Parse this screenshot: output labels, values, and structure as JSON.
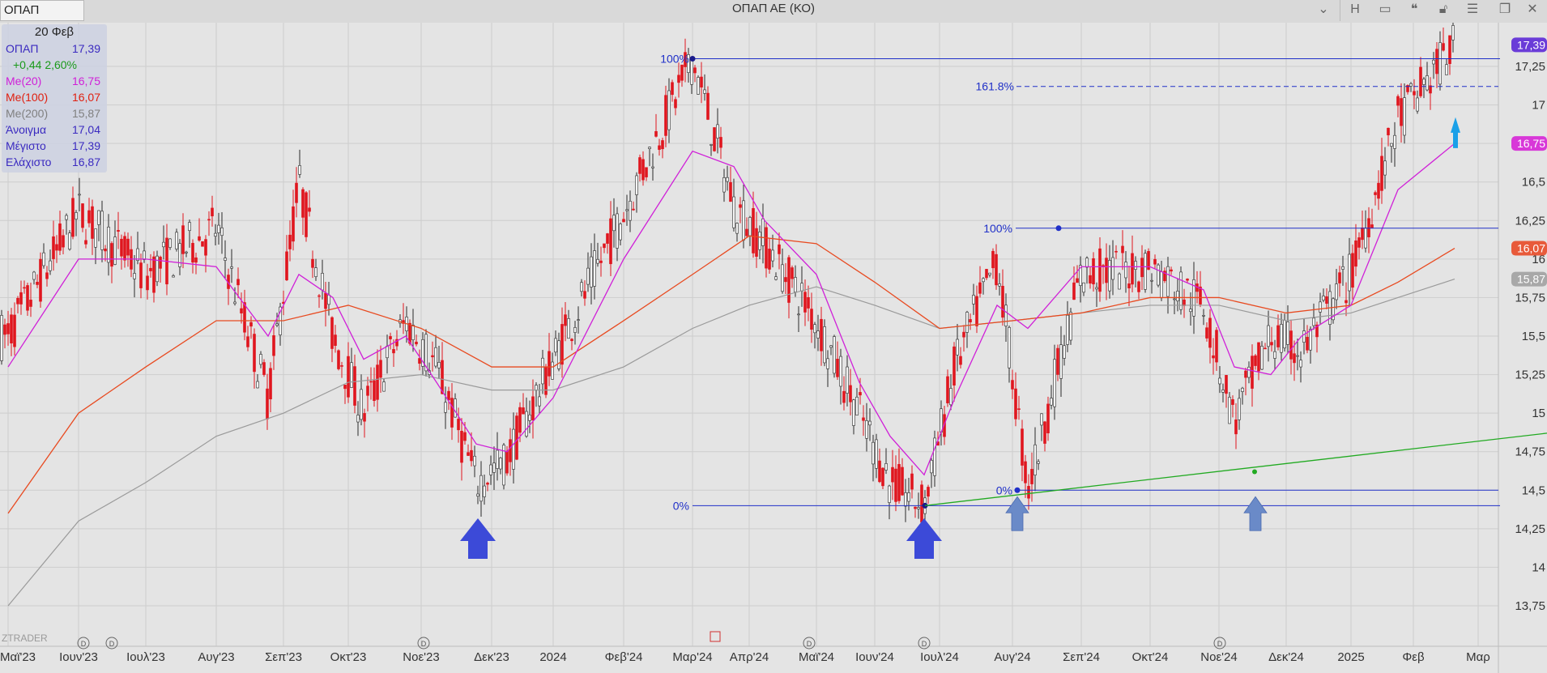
{
  "window": {
    "symbol": "ΟΠΑΠ",
    "title": "ΟΠΑΠ ΑΕ (ΚΟ)",
    "h_label": "H"
  },
  "legend": {
    "date": "20 Φεβ",
    "rows": [
      {
        "key": "ΟΠΑΠ",
        "value": "17,39",
        "color": "#3a2ac0"
      },
      {
        "key": "",
        "value": "+0,44 2,60%",
        "color": "#1a9a1a"
      },
      {
        "key": "Me(20)",
        "value": "16,75",
        "color": "#d020d8"
      },
      {
        "key": "Me(100)",
        "value": "16,07",
        "color": "#e02010"
      },
      {
        "key": "Me(200)",
        "value": "15,87",
        "color": "#808080"
      },
      {
        "key": "Άνοιγμα",
        "value": "17,04",
        "color": "#3a2ac0"
      },
      {
        "key": "Μέγιστο",
        "value": "17,39",
        "color": "#3a2ac0"
      },
      {
        "key": "Ελάχιστο",
        "value": "16,87",
        "color": "#3a2ac0"
      }
    ]
  },
  "watermark": "ZTRADER",
  "colors": {
    "down": "#e0161e",
    "up": "#2a2a2a",
    "ma20": "#d020d8",
    "ma100": "#e84a20",
    "ma200": "#9a9a9a",
    "fib": "#2030c8",
    "trend": "#22aa22",
    "arrow": "#3c4ad8",
    "arrow_light": "#6a8ac8",
    "grid": "#cdcdcd"
  },
  "chart_data": {
    "type": "candlestick",
    "x_ticks": [
      "Μαϊ'23",
      "Ιουν'23",
      "Ιουλ'23",
      "Αυγ'23",
      "Σεπ'23",
      "Οκτ'23",
      "Νοε'23",
      "Δεκ'23",
      "2024",
      "Φεβ'24",
      "Μαρ'24",
      "Απρ'24",
      "Μαϊ'24",
      "Ιουν'24",
      "Ιουλ'24",
      "Αυγ'24",
      "Σεπ'24",
      "Οκτ'24",
      "Νοε'24",
      "Δεκ'24",
      "2025",
      "Φεβ",
      "Μαρ"
    ],
    "y_ticks": [
      "13,75",
      "14",
      "14,25",
      "14,5",
      "14,75",
      "15",
      "15,25",
      "15,5",
      "15,75",
      "16",
      "16,25",
      "16,5",
      "16,75",
      "17",
      "17,25"
    ],
    "ylim": [
      13.55,
      17.5
    ],
    "last_price": {
      "label": "17,39",
      "value": 17.39
    },
    "ma_tags": [
      {
        "label": "16,75",
        "value": 16.75,
        "color": "#d838d8"
      },
      {
        "label": "16,07",
        "value": 16.07,
        "color": "#e85a3a"
      },
      {
        "label": "15,87",
        "value": 15.87,
        "color": "#a8a8a8"
      }
    ],
    "price_path": [
      [
        "Μαϊ'23",
        15.5
      ],
      [
        "Ιουν'23",
        16.3
      ],
      [
        "Ιουλ'23",
        15.9
      ],
      [
        "Αυγ'23",
        16.2
      ],
      [
        "Σεπ'23",
        15.1
      ],
      [
        "Σεπ'23",
        16.5
      ],
      [
        "Οκτ'23",
        15.5
      ],
      [
        "Οκτ'23",
        15.0
      ],
      [
        "Νοε'23",
        15.6
      ],
      [
        "Νοε'23",
        15.3
      ],
      [
        "Δεκ'23",
        14.55
      ],
      [
        "Δεκ'23",
        14.7
      ],
      [
        "2024",
        15.35
      ],
      [
        "Φεβ'24",
        16.3
      ],
      [
        "Μαρ'24",
        17.3
      ],
      [
        "Απρ'24",
        16.35
      ],
      [
        "Απρ'24",
        16.1
      ],
      [
        "Μαϊ'24",
        15.6
      ],
      [
        "Ιουν'24",
        15.0
      ],
      [
        "Ιουν'24",
        14.55
      ],
      [
        "Ιουλ'24",
        14.4
      ],
      [
        "Ιουλ'24",
        15.3
      ],
      [
        "Αυγ'24",
        16.0
      ],
      [
        "Αυγ'24",
        14.5
      ],
      [
        "Σεπ'24",
        15.9
      ],
      [
        "Οκτ'24",
        15.95
      ],
      [
        "Νοε'24",
        15.7
      ],
      [
        "Νοε'24",
        14.95
      ],
      [
        "Δεκ'24",
        15.5
      ],
      [
        "Δεκ'24",
        15.4
      ],
      [
        "2025",
        15.9
      ],
      [
        "Φεβ",
        16.9
      ],
      [
        "Φεβ",
        17.39
      ]
    ],
    "ma20": [
      [
        "Μαϊ'23",
        15.3
      ],
      [
        "Ιουν'23",
        16.0
      ],
      [
        "Ιουλ'23",
        16.0
      ],
      [
        "Αυγ'23",
        15.95
      ],
      [
        "Σεπ'23",
        15.5
      ],
      [
        "Σεπ'23",
        15.9
      ],
      [
        "Οκτ'23",
        15.75
      ],
      [
        "Οκτ'23",
        15.35
      ],
      [
        "Νοε'23",
        15.5
      ],
      [
        "Νοε'23",
        15.2
      ],
      [
        "Δεκ'23",
        14.8
      ],
      [
        "Δεκ'23",
        14.75
      ],
      [
        "2024",
        15.1
      ],
      [
        "Φεβ'24",
        16.0
      ],
      [
        "Μαρ'24",
        16.7
      ],
      [
        "Απρ'24",
        16.6
      ],
      [
        "Απρ'24",
        16.25
      ],
      [
        "Μαϊ'24",
        15.9
      ],
      [
        "Ιουν'24",
        15.2
      ],
      [
        "Ιουν'24",
        14.85
      ],
      [
        "Ιουλ'24",
        14.6
      ],
      [
        "Ιουλ'24",
        15.1
      ],
      [
        "Αυγ'24",
        15.7
      ],
      [
        "Αυγ'24",
        15.55
      ],
      [
        "Σεπ'24",
        15.95
      ],
      [
        "Οκτ'24",
        15.95
      ],
      [
        "Νοε'24",
        15.8
      ],
      [
        "Νοε'24",
        15.3
      ],
      [
        "Δεκ'24",
        15.25
      ],
      [
        "Δεκ'24",
        15.5
      ],
      [
        "2025",
        15.7
      ],
      [
        "Φεβ",
        16.45
      ],
      [
        "Φεβ",
        16.75
      ]
    ],
    "ma100": [
      [
        "Μαϊ'23",
        14.35
      ],
      [
        "Ιουν'23",
        15.0
      ],
      [
        "Ιουλ'23",
        15.3
      ],
      [
        "Αυγ'23",
        15.6
      ],
      [
        "Σεπ'23",
        15.6
      ],
      [
        "Οκτ'23",
        15.7
      ],
      [
        "Νοε'23",
        15.55
      ],
      [
        "Δεκ'23",
        15.3
      ],
      [
        "2024",
        15.3
      ],
      [
        "Φεβ'24",
        15.6
      ],
      [
        "Μαρ'24",
        15.9
      ],
      [
        "Απρ'24",
        16.15
      ],
      [
        "Μαϊ'24",
        16.1
      ],
      [
        "Ιουν'24",
        15.85
      ],
      [
        "Ιουλ'24",
        15.55
      ],
      [
        "Αυγ'24",
        15.6
      ],
      [
        "Σεπ'24",
        15.65
      ],
      [
        "Οκτ'24",
        15.75
      ],
      [
        "Νοε'24",
        15.75
      ],
      [
        "Δεκ'24",
        15.65
      ],
      [
        "2025",
        15.7
      ],
      [
        "Φεβ",
        15.85
      ],
      [
        "Φεβ",
        16.07
      ]
    ],
    "ma200": [
      [
        "Μαϊ'23",
        13.75
      ],
      [
        "Ιουν'23",
        14.3
      ],
      [
        "Ιουλ'23",
        14.55
      ],
      [
        "Αυγ'23",
        14.85
      ],
      [
        "Σεπ'23",
        15.0
      ],
      [
        "Οκτ'23",
        15.2
      ],
      [
        "Νοε'23",
        15.25
      ],
      [
        "Δεκ'23",
        15.15
      ],
      [
        "2024",
        15.15
      ],
      [
        "Φεβ'24",
        15.3
      ],
      [
        "Μαρ'24",
        15.55
      ],
      [
        "Απρ'24",
        15.7
      ],
      [
        "Μαϊ'24",
        15.82
      ],
      [
        "Ιουν'24",
        15.7
      ],
      [
        "Ιουλ'24",
        15.55
      ],
      [
        "Αυγ'24",
        15.6
      ],
      [
        "Σεπ'24",
        15.65
      ],
      [
        "Οκτ'24",
        15.7
      ],
      [
        "Νοε'24",
        15.7
      ],
      [
        "Δεκ'24",
        15.6
      ],
      [
        "2025",
        15.65
      ],
      [
        "Φεβ",
        15.75
      ],
      [
        "Φεβ",
        15.87
      ]
    ],
    "fib_left": {
      "from": "Μαρ'24",
      "high": 17.3,
      "low": 14.4,
      "levels": [
        {
          "label": "100%",
          "value": 17.3
        },
        {
          "label": "161.8%",
          "value": 17.12
        },
        {
          "label": "0%",
          "value": 14.4
        }
      ]
    },
    "fib_right": {
      "from": "Αυγ'24",
      "levels": [
        {
          "label": "100%",
          "value": 16.2
        },
        {
          "label": "0%",
          "value": 14.5
        }
      ]
    },
    "trendline": {
      "from": [
        "Ιουλ'24",
        14.4
      ],
      "to": [
        "Μαρ",
        14.87
      ]
    },
    "arrows": [
      {
        "at": "Δεκ'23",
        "type": "big"
      },
      {
        "at": "Ιουλ'24",
        "type": "big"
      },
      {
        "at": "Αυγ'24",
        "type": "light"
      },
      {
        "at": "Νοε'24",
        "type": "light"
      }
    ],
    "dividend_markers": [
      "Ιουν'23",
      "Ιουλ'23",
      "Νοε'23",
      "Μαϊ'24",
      "Ιουλ'24",
      "Νοε'24"
    ],
    "grid": true
  }
}
